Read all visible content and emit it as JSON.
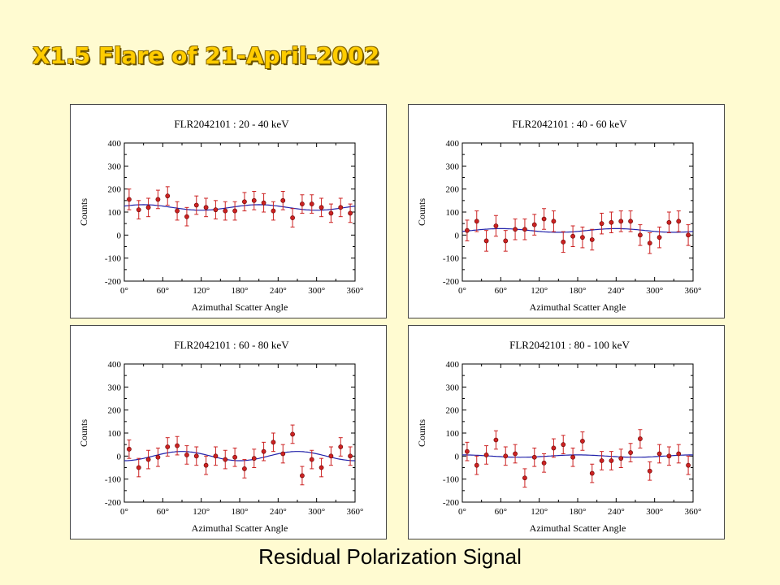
{
  "page": {
    "title": "X1.5 Flare of 21-April-2002",
    "footer": "Residual Polarization Signal"
  },
  "colors": {
    "background": "#fffbd1",
    "title_fill": "#ffcc00",
    "point": "#cc2222",
    "fit_line": "#2222aa"
  },
  "chart_data": [
    {
      "type": "scatter",
      "title": "FLR2042101 :  20 - 40 keV",
      "xlabel": "Azimuthal Scatter Angle",
      "ylabel": "Counts",
      "xlim": [
        0,
        360
      ],
      "ylim": [
        -200,
        400
      ],
      "xticks": [
        0,
        60,
        120,
        180,
        240,
        300,
        360
      ],
      "xtick_labels": [
        "0°",
        "60°",
        "120°",
        "180°",
        "240°",
        "300°",
        "360°"
      ],
      "yticks": [
        400,
        300,
        200,
        100,
        0,
        -100,
        -200
      ],
      "ytick_labels": [
        "400",
        "300",
        "200",
        "100",
        "0",
        "-100",
        "-200"
      ],
      "x": [
        7.5,
        22.5,
        37.5,
        52.5,
        67.5,
        82.5,
        97.5,
        112.5,
        127.5,
        142.5,
        157.5,
        172.5,
        187.5,
        202.5,
        217.5,
        232.5,
        247.5,
        262.5,
        277.5,
        292.5,
        307.5,
        322.5,
        337.5,
        352.5
      ],
      "y": [
        155,
        110,
        120,
        155,
        170,
        105,
        80,
        130,
        120,
        110,
        105,
        105,
        145,
        150,
        140,
        105,
        150,
        75,
        135,
        135,
        120,
        95,
        120,
        95
      ],
      "yerr": [
        45,
        40,
        40,
        40,
        40,
        40,
        40,
        40,
        40,
        40,
        40,
        40,
        40,
        40,
        40,
        40,
        40,
        40,
        40,
        40,
        40,
        40,
        40,
        40
      ],
      "fit": {
        "mean": 120,
        "amplitude": 12,
        "phase_deg": 30
      }
    },
    {
      "type": "scatter",
      "title": "FLR2042101 :  40 - 60 keV",
      "xlabel": "Azimuthal Scatter Angle",
      "ylabel": "Counts",
      "xlim": [
        0,
        360
      ],
      "ylim": [
        -200,
        400
      ],
      "xticks": [
        0,
        60,
        120,
        180,
        240,
        300,
        360
      ],
      "xtick_labels": [
        "0°",
        "60°",
        "120°",
        "180°",
        "240°",
        "300°",
        "360°"
      ],
      "yticks": [
        400,
        300,
        200,
        100,
        0,
        -100,
        -200
      ],
      "ytick_labels": [
        "400",
        "300",
        "200",
        "100",
        "0",
        "-100",
        "-200"
      ],
      "x": [
        7.5,
        22.5,
        37.5,
        52.5,
        67.5,
        82.5,
        97.5,
        112.5,
        127.5,
        142.5,
        157.5,
        172.5,
        187.5,
        202.5,
        217.5,
        232.5,
        247.5,
        262.5,
        277.5,
        292.5,
        307.5,
        322.5,
        337.5,
        352.5
      ],
      "y": [
        20,
        60,
        -25,
        40,
        -25,
        25,
        25,
        45,
        70,
        60,
        -30,
        -5,
        -10,
        -20,
        50,
        55,
        60,
        60,
        0,
        -35,
        -10,
        55,
        60,
        0
      ],
      "yerr": [
        45,
        45,
        45,
        45,
        45,
        45,
        45,
        45,
        45,
        45,
        45,
        45,
        45,
        45,
        45,
        45,
        45,
        45,
        45,
        45,
        45,
        45,
        45,
        45
      ],
      "fit": {
        "mean": 20,
        "amplitude": 8,
        "phase_deg": 60
      }
    },
    {
      "type": "scatter",
      "title": "FLR2042101 :  60 - 80 keV",
      "xlabel": "Azimuthal Scatter Angle",
      "ylabel": "Counts",
      "xlim": [
        0,
        360
      ],
      "ylim": [
        -200,
        400
      ],
      "xticks": [
        0,
        60,
        120,
        180,
        240,
        300,
        360
      ],
      "xtick_labels": [
        "0°",
        "60°",
        "120°",
        "180°",
        "240°",
        "300°",
        "360°"
      ],
      "yticks": [
        400,
        300,
        200,
        100,
        0,
        -100,
        -200
      ],
      "ytick_labels": [
        "400",
        "300",
        "200",
        "100",
        "0",
        "-100",
        "-200"
      ],
      "x": [
        7.5,
        22.5,
        37.5,
        52.5,
        67.5,
        82.5,
        97.5,
        112.5,
        127.5,
        142.5,
        157.5,
        172.5,
        187.5,
        202.5,
        217.5,
        232.5,
        247.5,
        262.5,
        277.5,
        292.5,
        307.5,
        322.5,
        337.5,
        352.5
      ],
      "y": [
        30,
        -50,
        -15,
        -5,
        40,
        45,
        5,
        0,
        -40,
        0,
        -15,
        -5,
        -55,
        -10,
        20,
        60,
        10,
        95,
        -85,
        -15,
        -50,
        0,
        40,
        0
      ],
      "yerr": [
        40,
        40,
        40,
        40,
        40,
        40,
        40,
        40,
        40,
        40,
        40,
        40,
        40,
        40,
        40,
        40,
        40,
        40,
        40,
        40,
        40,
        40,
        40,
        40
      ],
      "fit": {
        "mean": 0,
        "amplitude": 20,
        "phase_deg": 90
      }
    },
    {
      "type": "scatter",
      "title": "FLR2042101 :  80 - 100 keV",
      "xlabel": "Azimuthal Scatter Angle",
      "ylabel": "Counts",
      "xlim": [
        0,
        360
      ],
      "ylim": [
        -200,
        400
      ],
      "xticks": [
        0,
        60,
        120,
        180,
        240,
        300,
        360
      ],
      "xtick_labels": [
        "0°",
        "60°",
        "120°",
        "180°",
        "240°",
        "300°",
        "360°"
      ],
      "yticks": [
        400,
        300,
        200,
        100,
        0,
        -100,
        -200
      ],
      "ytick_labels": [
        "400",
        "300",
        "200",
        "100",
        "0",
        "-100",
        "-200"
      ],
      "x": [
        7.5,
        22.5,
        37.5,
        52.5,
        67.5,
        82.5,
        97.5,
        112.5,
        127.5,
        142.5,
        157.5,
        172.5,
        187.5,
        202.5,
        217.5,
        232.5,
        247.5,
        262.5,
        277.5,
        292.5,
        307.5,
        322.5,
        337.5,
        352.5
      ],
      "y": [
        20,
        -40,
        5,
        70,
        0,
        10,
        -95,
        -5,
        -30,
        35,
        50,
        -5,
        65,
        -75,
        -20,
        -20,
        -10,
        15,
        75,
        -65,
        10,
        0,
        10,
        -40
      ],
      "yerr": [
        40,
        40,
        40,
        40,
        40,
        40,
        40,
        40,
        40,
        40,
        40,
        40,
        40,
        40,
        40,
        40,
        40,
        40,
        40,
        40,
        40,
        40,
        40,
        40
      ],
      "fit": {
        "mean": 0,
        "amplitude": 5,
        "phase_deg": 0
      }
    }
  ]
}
